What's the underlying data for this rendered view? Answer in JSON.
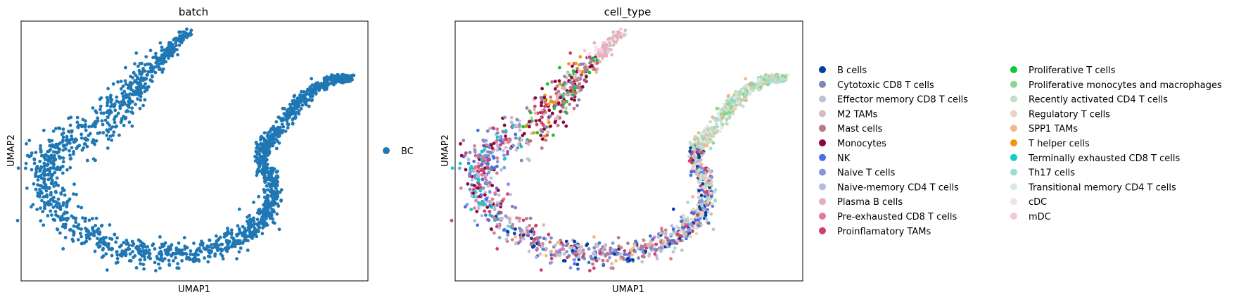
{
  "chart_data": [
    {
      "type": "scatter",
      "title": "batch",
      "xlabel": "UMAP1",
      "ylabel": "UMAP2",
      "grid": false,
      "legend_position": "right",
      "series": [
        {
          "name": "BC",
          "color": "#1f77b4"
        }
      ]
    },
    {
      "type": "scatter",
      "title": "cell_type",
      "xlabel": "UMAP1",
      "ylabel": "UMAP2",
      "grid": false,
      "legend_position": "right",
      "legend_columns": 2,
      "series": [
        {
          "name": "B cells",
          "color": "#023fa5"
        },
        {
          "name": "Cytotoxic CD8 T cells",
          "color": "#7d87b9"
        },
        {
          "name": "Effector memory CD8 T cells",
          "color": "#bec1d4"
        },
        {
          "name": "M2 TAMs",
          "color": "#d6bcc0"
        },
        {
          "name": "Mast cells",
          "color": "#bb7784"
        },
        {
          "name": "Monocytes",
          "color": "#8e063b"
        },
        {
          "name": "NK",
          "color": "#4a6fe3"
        },
        {
          "name": "Naive T cells",
          "color": "#8595e1"
        },
        {
          "name": "Naive-memory CD4 T cells",
          "color": "#b5bbe3"
        },
        {
          "name": "Plasma B cells",
          "color": "#e6afb9"
        },
        {
          "name": "Pre-exhausted CD8 T cells",
          "color": "#e07b91"
        },
        {
          "name": "Proinflamatory TAMs",
          "color": "#d33f6a"
        },
        {
          "name": "Proliferative T cells",
          "color": "#11c638"
        },
        {
          "name": "Proliferative monocytes and macrophages",
          "color": "#8dd593"
        },
        {
          "name": "Recently activated CD4 T cells",
          "color": "#c6dec7"
        },
        {
          "name": "Regulatory T cells",
          "color": "#ead3c6"
        },
        {
          "name": "SPP1 TAMs",
          "color": "#f0b98d"
        },
        {
          "name": "T helper cells",
          "color": "#ef9708"
        },
        {
          "name": "Terminally exhausted CD8 T cells",
          "color": "#0fcfc0"
        },
        {
          "name": "Th17 cells",
          "color": "#9cded6"
        },
        {
          "name": "Transitional memory CD4 T cells",
          "color": "#d5eae7"
        },
        {
          "name": "cDC",
          "color": "#f3e1eb"
        },
        {
          "name": "mDC",
          "color": "#f6c4e1"
        }
      ]
    }
  ]
}
